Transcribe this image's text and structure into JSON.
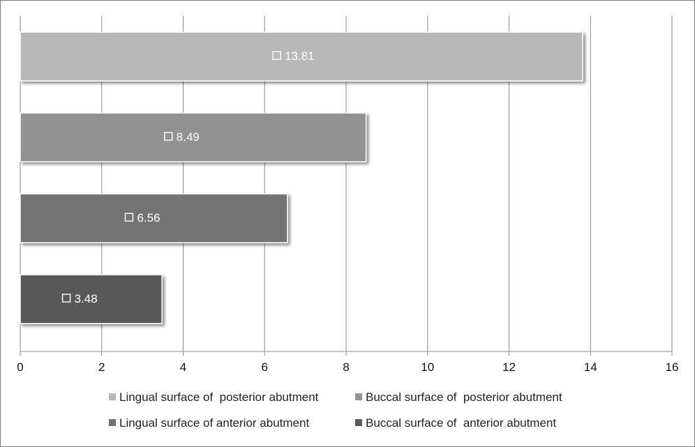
{
  "chart_data": {
    "type": "bar",
    "orientation": "horizontal",
    "title": "",
    "xlabel": "",
    "ylabel": "",
    "xlim": [
      0,
      16
    ],
    "x_ticks": [
      "0",
      "2",
      "4",
      "6",
      "8",
      "10",
      "12",
      "14",
      "16"
    ],
    "grid": "vertical",
    "legend_position": "bottom",
    "series": [
      {
        "name": "Lingual surface of  posterior abutment",
        "value": 13.81,
        "label": "13.81",
        "color": "#b8b8b8"
      },
      {
        "name": "Buccal surface of  posterior abutment",
        "value": 8.49,
        "label": "8.49",
        "color": "#929292"
      },
      {
        "name": "Lingual surface of anterior abutment",
        "value": 6.56,
        "label": "6.56",
        "color": "#737373"
      },
      {
        "name": "Buccal surface of  anterior abutment",
        "value": 3.48,
        "label": "3.48",
        "color": "#595959"
      }
    ]
  }
}
